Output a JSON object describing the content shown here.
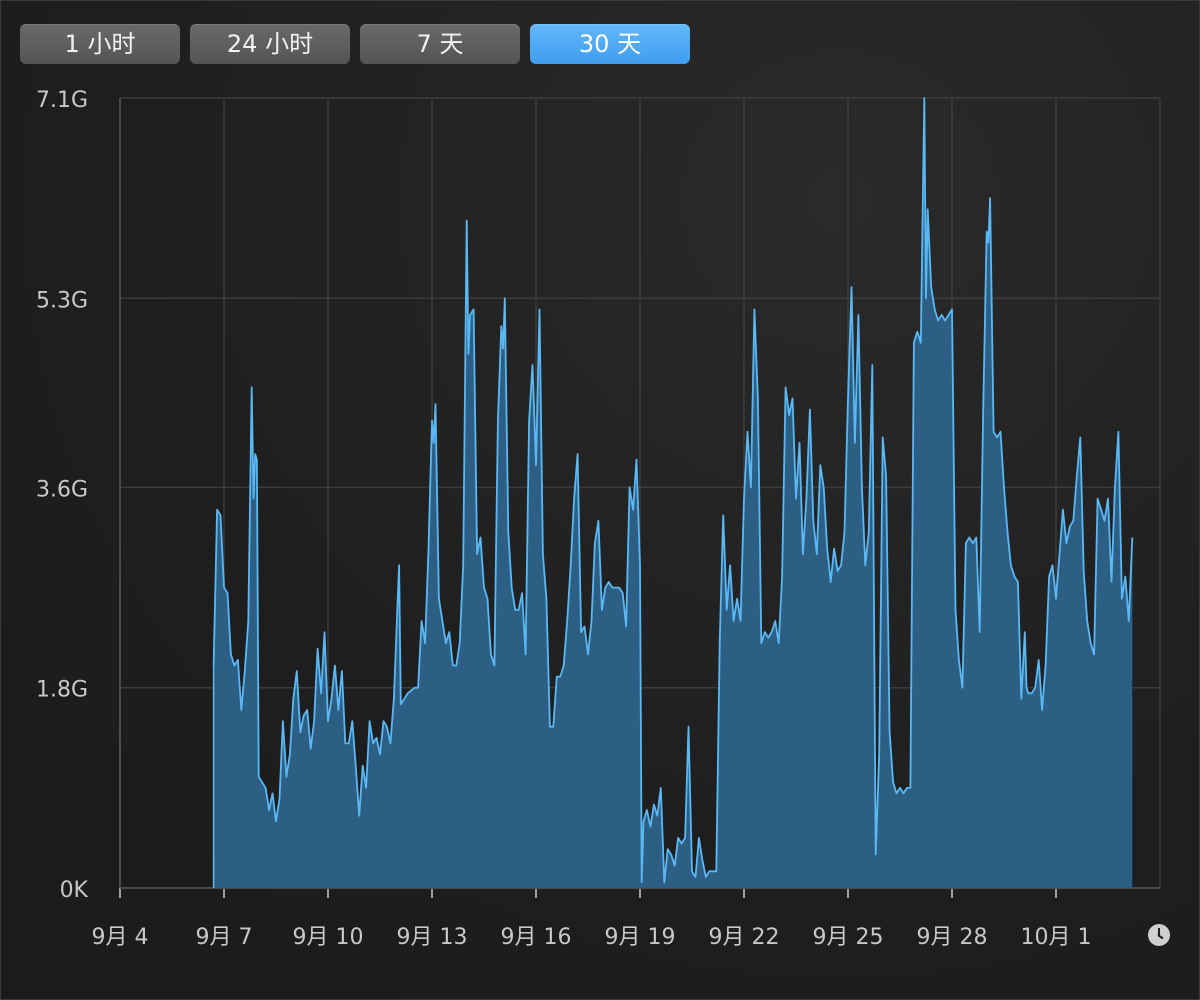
{
  "tabs": [
    {
      "label": "1 小时",
      "active": false
    },
    {
      "label": "24 小时",
      "active": false
    },
    {
      "label": "7 天",
      "active": false
    },
    {
      "label": "30 天",
      "active": true
    }
  ],
  "colors": {
    "line": "#5ab8f5",
    "fill": "#2d5f85",
    "grid": "#3c3c3c",
    "axis_text": "#c8c8c8",
    "accent": "#4aa8f4"
  },
  "clock_icon": "clock-icon",
  "chart_data": {
    "type": "area",
    "x_unit": "day-of-september (values above 30 continue into October)",
    "x_ticks": [
      {
        "label": "9月 4",
        "value": 4
      },
      {
        "label": "9月 7",
        "value": 7
      },
      {
        "label": "9月 10",
        "value": 10
      },
      {
        "label": "9月 13",
        "value": 13
      },
      {
        "label": "9月 16",
        "value": 16
      },
      {
        "label": "9月 19",
        "value": 19
      },
      {
        "label": "9月 22",
        "value": 22
      },
      {
        "label": "9月 25",
        "value": 25
      },
      {
        "label": "9月 28",
        "value": 28
      },
      {
        "label": "10月 1",
        "value": 31
      }
    ],
    "y_ticks": [
      {
        "label": "0K",
        "value": 0
      },
      {
        "label": "1.8G",
        "value": 1.8
      },
      {
        "label": "3.6G",
        "value": 3.6
      },
      {
        "label": "5.3G",
        "value": 5.3
      },
      {
        "label": "7.1G",
        "value": 7.1
      }
    ],
    "xlim": [
      4,
      34
    ],
    "ylim": [
      0,
      7.1
    ],
    "grid": true,
    "points": [
      [
        6.7,
        2.0
      ],
      [
        6.8,
        3.4
      ],
      [
        6.9,
        3.35
      ],
      [
        7.0,
        2.7
      ],
      [
        7.1,
        2.65
      ],
      [
        7.2,
        2.1
      ],
      [
        7.3,
        2.0
      ],
      [
        7.4,
        2.05
      ],
      [
        7.5,
        1.6
      ],
      [
        7.6,
        1.95
      ],
      [
        7.7,
        2.4
      ],
      [
        7.8,
        4.5
      ],
      [
        7.85,
        3.5
      ],
      [
        7.9,
        3.9
      ],
      [
        7.95,
        3.85
      ],
      [
        8.0,
        1.0
      ],
      [
        8.1,
        0.95
      ],
      [
        8.2,
        0.9
      ],
      [
        8.3,
        0.7
      ],
      [
        8.4,
        0.85
      ],
      [
        8.5,
        0.6
      ],
      [
        8.6,
        0.8
      ],
      [
        8.7,
        1.5
      ],
      [
        8.8,
        1.0
      ],
      [
        8.9,
        1.2
      ],
      [
        9.0,
        1.7
      ],
      [
        9.1,
        1.95
      ],
      [
        9.2,
        1.4
      ],
      [
        9.3,
        1.55
      ],
      [
        9.4,
        1.6
      ],
      [
        9.5,
        1.25
      ],
      [
        9.6,
        1.5
      ],
      [
        9.7,
        2.15
      ],
      [
        9.8,
        1.75
      ],
      [
        9.9,
        2.3
      ],
      [
        10.0,
        1.5
      ],
      [
        10.1,
        1.7
      ],
      [
        10.2,
        2.0
      ],
      [
        10.3,
        1.6
      ],
      [
        10.4,
        1.95
      ],
      [
        10.5,
        1.3
      ],
      [
        10.6,
        1.3
      ],
      [
        10.7,
        1.5
      ],
      [
        10.8,
        1.1
      ],
      [
        10.9,
        0.65
      ],
      [
        11.0,
        1.1
      ],
      [
        11.1,
        0.9
      ],
      [
        11.2,
        1.5
      ],
      [
        11.3,
        1.3
      ],
      [
        11.4,
        1.35
      ],
      [
        11.5,
        1.2
      ],
      [
        11.6,
        1.5
      ],
      [
        11.7,
        1.45
      ],
      [
        11.8,
        1.3
      ],
      [
        11.9,
        1.7
      ],
      [
        12.0,
        2.5
      ],
      [
        12.05,
        2.9
      ],
      [
        12.1,
        1.65
      ],
      [
        12.2,
        1.7
      ],
      [
        12.3,
        1.75
      ],
      [
        12.5,
        1.8
      ],
      [
        12.6,
        1.8
      ],
      [
        12.7,
        2.4
      ],
      [
        12.8,
        2.2
      ],
      [
        12.9,
        3.05
      ],
      [
        13.0,
        4.2
      ],
      [
        13.05,
        4.0
      ],
      [
        13.1,
        4.35
      ],
      [
        13.2,
        2.6
      ],
      [
        13.3,
        2.4
      ],
      [
        13.4,
        2.2
      ],
      [
        13.5,
        2.3
      ],
      [
        13.6,
        2.0
      ],
      [
        13.7,
        2.0
      ],
      [
        13.8,
        2.2
      ],
      [
        13.9,
        2.9
      ],
      [
        14.0,
        6.0
      ],
      [
        14.05,
        4.8
      ],
      [
        14.1,
        5.15
      ],
      [
        14.2,
        5.2
      ],
      [
        14.3,
        3.0
      ],
      [
        14.4,
        3.15
      ],
      [
        14.5,
        2.7
      ],
      [
        14.6,
        2.6
      ],
      [
        14.7,
        2.1
      ],
      [
        14.8,
        2.0
      ],
      [
        14.9,
        4.2
      ],
      [
        15.0,
        5.05
      ],
      [
        15.05,
        4.85
      ],
      [
        15.1,
        5.3
      ],
      [
        15.2,
        3.2
      ],
      [
        15.3,
        2.7
      ],
      [
        15.4,
        2.5
      ],
      [
        15.5,
        2.5
      ],
      [
        15.6,
        2.65
      ],
      [
        15.7,
        2.1
      ],
      [
        15.8,
        4.2
      ],
      [
        15.9,
        4.7
      ],
      [
        16.0,
        3.8
      ],
      [
        16.1,
        5.2
      ],
      [
        16.2,
        3.0
      ],
      [
        16.3,
        2.6
      ],
      [
        16.4,
        1.45
      ],
      [
        16.5,
        1.45
      ],
      [
        16.6,
        1.9
      ],
      [
        16.7,
        1.9
      ],
      [
        16.8,
        2.0
      ],
      [
        16.9,
        2.4
      ],
      [
        17.0,
        2.9
      ],
      [
        17.1,
        3.5
      ],
      [
        17.2,
        3.9
      ],
      [
        17.3,
        2.3
      ],
      [
        17.4,
        2.35
      ],
      [
        17.5,
        2.1
      ],
      [
        17.6,
        2.4
      ],
      [
        17.7,
        3.1
      ],
      [
        17.8,
        3.3
      ],
      [
        17.9,
        2.5
      ],
      [
        18.0,
        2.7
      ],
      [
        18.1,
        2.75
      ],
      [
        18.2,
        2.7
      ],
      [
        18.3,
        2.7
      ],
      [
        18.4,
        2.7
      ],
      [
        18.5,
        2.65
      ],
      [
        18.6,
        2.35
      ],
      [
        18.7,
        3.6
      ],
      [
        18.8,
        3.4
      ],
      [
        18.9,
        3.85
      ],
      [
        19.0,
        2.9
      ],
      [
        19.05,
        0.05
      ],
      [
        19.1,
        0.6
      ],
      [
        19.2,
        0.7
      ],
      [
        19.3,
        0.55
      ],
      [
        19.4,
        0.75
      ],
      [
        19.5,
        0.65
      ],
      [
        19.6,
        0.9
      ],
      [
        19.7,
        0.05
      ],
      [
        19.8,
        0.35
      ],
      [
        19.9,
        0.3
      ],
      [
        20.0,
        0.2
      ],
      [
        20.1,
        0.45
      ],
      [
        20.2,
        0.4
      ],
      [
        20.3,
        0.45
      ],
      [
        20.4,
        1.45
      ],
      [
        20.5,
        0.15
      ],
      [
        20.6,
        0.1
      ],
      [
        20.7,
        0.45
      ],
      [
        20.8,
        0.25
      ],
      [
        20.9,
        0.1
      ],
      [
        21.0,
        0.15
      ],
      [
        21.1,
        0.15
      ],
      [
        21.2,
        0.15
      ],
      [
        21.3,
        2.2
      ],
      [
        21.4,
        3.35
      ],
      [
        21.5,
        2.5
      ],
      [
        21.6,
        2.9
      ],
      [
        21.7,
        2.4
      ],
      [
        21.8,
        2.6
      ],
      [
        21.9,
        2.4
      ],
      [
        22.0,
        3.5
      ],
      [
        22.1,
        4.1
      ],
      [
        22.2,
        3.6
      ],
      [
        22.3,
        5.2
      ],
      [
        22.4,
        4.4
      ],
      [
        22.5,
        2.2
      ],
      [
        22.6,
        2.3
      ],
      [
        22.7,
        2.25
      ],
      [
        22.8,
        2.3
      ],
      [
        22.9,
        2.4
      ],
      [
        23.0,
        2.2
      ],
      [
        23.1,
        2.8
      ],
      [
        23.2,
        4.5
      ],
      [
        23.3,
        4.25
      ],
      [
        23.4,
        4.4
      ],
      [
        23.5,
        3.5
      ],
      [
        23.6,
        4.0
      ],
      [
        23.7,
        3.0
      ],
      [
        23.8,
        3.5
      ],
      [
        23.9,
        4.3
      ],
      [
        24.0,
        3.3
      ],
      [
        24.1,
        3.0
      ],
      [
        24.2,
        3.8
      ],
      [
        24.3,
        3.6
      ],
      [
        24.4,
        3.05
      ],
      [
        24.5,
        2.75
      ],
      [
        24.6,
        3.05
      ],
      [
        24.7,
        2.85
      ],
      [
        24.8,
        2.9
      ],
      [
        24.9,
        3.2
      ],
      [
        25.0,
        4.4
      ],
      [
        25.1,
        5.4
      ],
      [
        25.2,
        4.0
      ],
      [
        25.3,
        5.15
      ],
      [
        25.4,
        3.6
      ],
      [
        25.5,
        2.9
      ],
      [
        25.6,
        3.2
      ],
      [
        25.7,
        4.7
      ],
      [
        25.8,
        0.3
      ],
      [
        25.9,
        1.2
      ],
      [
        26.0,
        4.05
      ],
      [
        26.1,
        3.7
      ],
      [
        26.2,
        1.4
      ],
      [
        26.3,
        0.95
      ],
      [
        26.4,
        0.85
      ],
      [
        26.5,
        0.9
      ],
      [
        26.6,
        0.85
      ],
      [
        26.7,
        0.9
      ],
      [
        26.8,
        0.9
      ],
      [
        26.9,
        4.9
      ],
      [
        27.0,
        5.0
      ],
      [
        27.1,
        4.9
      ],
      [
        27.2,
        7.1
      ],
      [
        27.25,
        5.3
      ],
      [
        27.3,
        6.1
      ],
      [
        27.4,
        5.4
      ],
      [
        27.5,
        5.2
      ],
      [
        27.6,
        5.1
      ],
      [
        27.7,
        5.15
      ],
      [
        27.8,
        5.1
      ],
      [
        27.9,
        5.15
      ],
      [
        28.0,
        5.2
      ],
      [
        28.1,
        2.5
      ],
      [
        28.2,
        2.05
      ],
      [
        28.3,
        1.8
      ],
      [
        28.4,
        3.1
      ],
      [
        28.5,
        3.15
      ],
      [
        28.6,
        3.1
      ],
      [
        28.7,
        3.15
      ],
      [
        28.8,
        2.3
      ],
      [
        28.9,
        4.3
      ],
      [
        29.0,
        5.9
      ],
      [
        29.05,
        5.8
      ],
      [
        29.1,
        6.2
      ],
      [
        29.2,
        4.1
      ],
      [
        29.3,
        4.05
      ],
      [
        29.4,
        4.1
      ],
      [
        29.5,
        3.6
      ],
      [
        29.6,
        3.2
      ],
      [
        29.7,
        2.9
      ],
      [
        29.8,
        2.8
      ],
      [
        29.9,
        2.75
      ],
      [
        30.0,
        1.7
      ],
      [
        30.1,
        2.3
      ],
      [
        30.15,
        1.8
      ],
      [
        30.2,
        1.75
      ],
      [
        30.3,
        1.75
      ],
      [
        30.4,
        1.8
      ],
      [
        30.5,
        2.05
      ],
      [
        30.6,
        1.6
      ],
      [
        30.7,
        2.0
      ],
      [
        30.8,
        2.8
      ],
      [
        30.9,
        2.9
      ],
      [
        31.0,
        2.6
      ],
      [
        31.1,
        3.0
      ],
      [
        31.2,
        3.4
      ],
      [
        31.3,
        3.1
      ],
      [
        31.4,
        3.25
      ],
      [
        31.5,
        3.3
      ],
      [
        31.6,
        3.7
      ],
      [
        31.7,
        4.05
      ],
      [
        31.8,
        2.85
      ],
      [
        31.9,
        2.4
      ],
      [
        32.0,
        2.2
      ],
      [
        32.1,
        2.1
      ],
      [
        32.2,
        3.5
      ],
      [
        32.3,
        3.4
      ],
      [
        32.4,
        3.3
      ],
      [
        32.5,
        3.5
      ],
      [
        32.6,
        2.75
      ],
      [
        32.7,
        3.6
      ],
      [
        32.8,
        4.1
      ],
      [
        32.9,
        2.6
      ],
      [
        33.0,
        2.8
      ],
      [
        33.1,
        2.4
      ],
      [
        33.2,
        3.15
      ]
    ]
  }
}
